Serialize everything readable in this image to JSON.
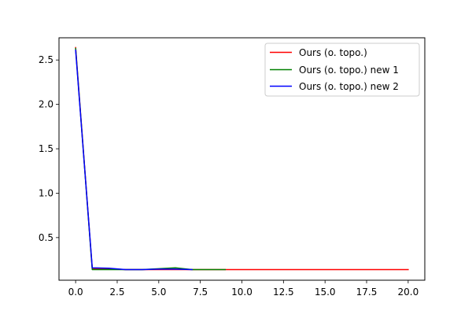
{
  "chart_data": {
    "type": "line",
    "title": "",
    "xlabel": "",
    "ylabel": "",
    "xlim": [
      -1.0,
      21.0
    ],
    "ylim": [
      0.02,
      2.75
    ],
    "xticks": [
      0.0,
      2.5,
      5.0,
      7.5,
      10.0,
      12.5,
      15.0,
      17.5,
      20.0
    ],
    "xtick_labels": [
      "0.0",
      "2.5",
      "5.0",
      "7.5",
      "10.0",
      "12.5",
      "15.0",
      "17.5",
      "20.0"
    ],
    "yticks": [
      0.5,
      1.0,
      1.5,
      2.0,
      2.5
    ],
    "ytick_labels": [
      "0.5",
      "1.0",
      "1.5",
      "2.0",
      "2.5"
    ],
    "grid": false,
    "legend_position": "top-right",
    "series": [
      {
        "name": "Ours (o. topo.)",
        "color": "#ff0000",
        "x": [
          0,
          1,
          2,
          3,
          4,
          5,
          6,
          7,
          8,
          9,
          10,
          11,
          12,
          13,
          14,
          15,
          16,
          17,
          18,
          19,
          20
        ],
        "y": [
          2.64,
          0.15,
          0.15,
          0.14,
          0.14,
          0.14,
          0.14,
          0.14,
          0.14,
          0.14,
          0.14,
          0.14,
          0.14,
          0.14,
          0.14,
          0.14,
          0.14,
          0.14,
          0.14,
          0.14,
          0.14
        ]
      },
      {
        "name": "Ours (o. topo.) new 1",
        "color": "#008000",
        "x": [
          0,
          1,
          2,
          3,
          4,
          5,
          6,
          7,
          8,
          9
        ],
        "y": [
          2.63,
          0.14,
          0.14,
          0.14,
          0.14,
          0.15,
          0.16,
          0.14,
          0.14,
          0.14
        ]
      },
      {
        "name": "Ours (o. topo.) new 2",
        "color": "#0000ff",
        "x": [
          0,
          1,
          2,
          3,
          4,
          5,
          6,
          7
        ],
        "y": [
          2.61,
          0.16,
          0.155,
          0.14,
          0.14,
          0.145,
          0.145,
          0.14
        ]
      }
    ]
  }
}
